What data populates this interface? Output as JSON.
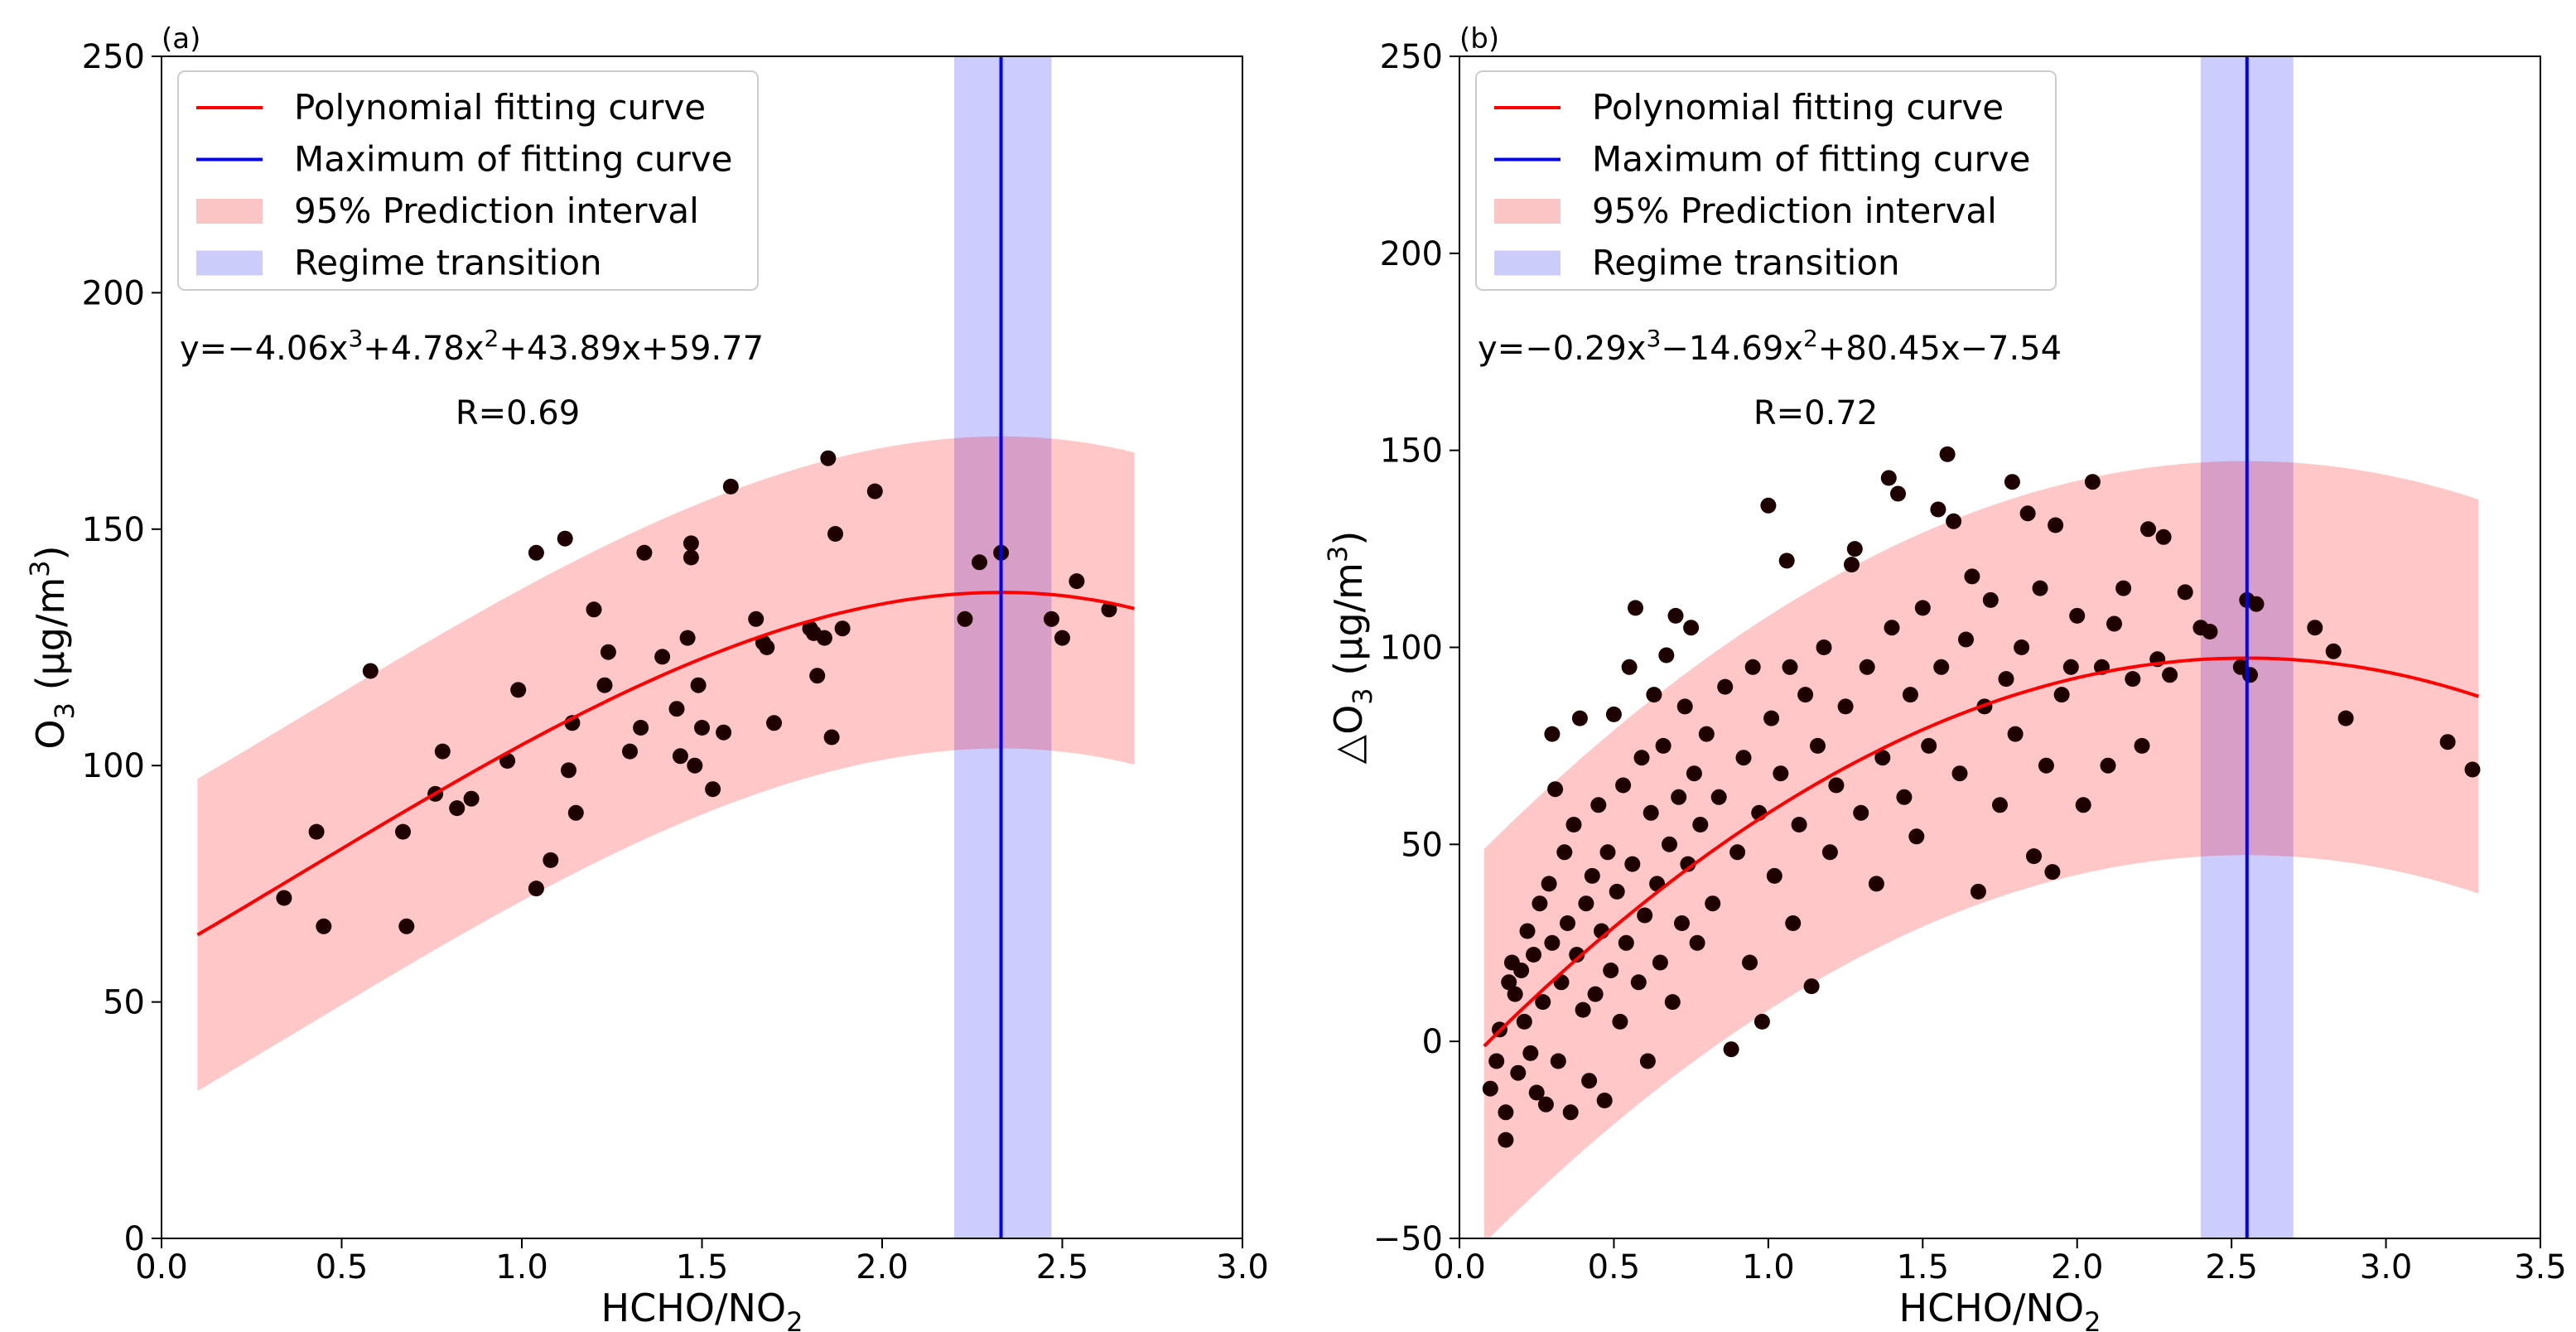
{
  "chart_data": [
    {
      "type": "scatter",
      "panel_label": "(a)",
      "xlabel": {
        "main": "HCHO/NO",
        "sub": "2"
      },
      "ylabel": {
        "main": "O",
        "sub": "3",
        "rest": " (μg/m",
        "sup": "3",
        "end": ")"
      },
      "xlim": [
        0,
        3.0
      ],
      "ylim": [
        0,
        250
      ],
      "xticks": [
        "0.0",
        "0.5",
        "1.0",
        "1.5",
        "2.0",
        "2.5",
        "3.0"
      ],
      "yticks": [
        "0",
        "50",
        "100",
        "150",
        "200",
        "250"
      ],
      "legend": {
        "position": "top-left",
        "entries": [
          {
            "label": "Polynomial fitting curve",
            "kind": "line",
            "color": "#ff0000"
          },
          {
            "label": "Maximum of fitting curve",
            "kind": "line",
            "color": "#0000ff"
          },
          {
            "label": "95% Prediction interval",
            "kind": "patch",
            "color": "#fcc5c5"
          },
          {
            "label": "Regime transition",
            "kind": "patch",
            "color": "#ccccfb"
          }
        ]
      },
      "equation": {
        "parts": [
          "y=−4.06x",
          "3",
          "+4.78x",
          "2",
          "+43.89x+59.77"
        ]
      },
      "r_text": "R=0.69",
      "fit": {
        "coeffs": [
          -4.06,
          4.78,
          43.89,
          59.77
        ],
        "x_range": [
          0.1,
          2.7
        ]
      },
      "interval": {
        "half_width": 33,
        "x_range": [
          0.1,
          2.7
        ]
      },
      "maximum_x": 2.33,
      "transition": [
        2.2,
        2.47
      ],
      "points": [
        [
          0.34,
          72
        ],
        [
          0.43,
          86
        ],
        [
          0.45,
          66
        ],
        [
          0.58,
          120
        ],
        [
          0.67,
          86
        ],
        [
          0.68,
          66
        ],
        [
          0.76,
          94
        ],
        [
          0.78,
          103
        ],
        [
          0.82,
          91
        ],
        [
          0.86,
          93
        ],
        [
          0.96,
          101
        ],
        [
          0.99,
          116
        ],
        [
          1.04,
          74
        ],
        [
          1.04,
          145
        ],
        [
          1.08,
          80
        ],
        [
          1.12,
          148
        ],
        [
          1.13,
          99
        ],
        [
          1.14,
          109
        ],
        [
          1.15,
          90
        ],
        [
          1.2,
          133
        ],
        [
          1.23,
          117
        ],
        [
          1.24,
          124
        ],
        [
          1.3,
          103
        ],
        [
          1.33,
          108
        ],
        [
          1.34,
          145
        ],
        [
          1.39,
          123
        ],
        [
          1.43,
          112
        ],
        [
          1.44,
          102
        ],
        [
          1.46,
          127
        ],
        [
          1.47,
          147
        ],
        [
          1.47,
          144
        ],
        [
          1.48,
          100
        ],
        [
          1.49,
          117
        ],
        [
          1.5,
          108
        ],
        [
          1.53,
          95
        ],
        [
          1.56,
          107
        ],
        [
          1.58,
          159
        ],
        [
          1.65,
          131
        ],
        [
          1.67,
          126
        ],
        [
          1.68,
          125
        ],
        [
          1.7,
          109
        ],
        [
          1.8,
          129
        ],
        [
          1.81,
          128
        ],
        [
          1.82,
          119
        ],
        [
          1.84,
          127
        ],
        [
          1.85,
          165
        ],
        [
          1.86,
          106
        ],
        [
          1.87,
          149
        ],
        [
          1.89,
          129
        ],
        [
          1.98,
          158
        ],
        [
          2.23,
          131
        ],
        [
          2.27,
          143
        ],
        [
          2.33,
          145
        ],
        [
          2.47,
          131
        ],
        [
          2.5,
          127
        ],
        [
          2.54,
          139
        ],
        [
          2.63,
          133
        ]
      ]
    },
    {
      "type": "scatter",
      "panel_label": "(b)",
      "xlabel": {
        "main": "HCHO/NO",
        "sub": "2"
      },
      "ylabel": {
        "main": "△O",
        "sub": "3",
        "rest": " (μg/m",
        "sup": "3",
        "end": ")"
      },
      "xlim": [
        0,
        3.5
      ],
      "ylim": [
        -50,
        250
      ],
      "xticks": [
        "0.0",
        "0.5",
        "1.0",
        "1.5",
        "2.0",
        "2.5",
        "3.0",
        "3.5"
      ],
      "yticks": [
        "−50",
        "0",
        "50",
        "100",
        "150",
        "200",
        "250"
      ],
      "legend": {
        "position": "top-left",
        "entries": [
          {
            "label": "Polynomial fitting curve",
            "kind": "line",
            "color": "#ff0000"
          },
          {
            "label": "Maximum of fitting curve",
            "kind": "line",
            "color": "#0000ff"
          },
          {
            "label": "95% Prediction interval",
            "kind": "patch",
            "color": "#fcc5c5"
          },
          {
            "label": "Regime transition",
            "kind": "patch",
            "color": "#ccccfb"
          }
        ]
      },
      "equation": {
        "parts": [
          "y=−0.29x",
          "3",
          "−14.69x",
          "2",
          "+80.45x−7.54"
        ]
      },
      "r_text": "R=0.72",
      "fit": {
        "coeffs": [
          -0.29,
          -14.69,
          80.45,
          -7.54
        ],
        "x_range": [
          0.08,
          3.3
        ]
      },
      "interval": {
        "half_width": 50,
        "x_range": [
          0.08,
          3.3
        ]
      },
      "maximum_x": 2.55,
      "transition": [
        2.4,
        2.7
      ],
      "points": [
        [
          0.1,
          -12
        ],
        [
          0.12,
          -5
        ],
        [
          0.13,
          3
        ],
        [
          0.15,
          -25
        ],
        [
          0.15,
          -18
        ],
        [
          0.16,
          15
        ],
        [
          0.17,
          20
        ],
        [
          0.18,
          12
        ],
        [
          0.19,
          -8
        ],
        [
          0.2,
          18
        ],
        [
          0.21,
          5
        ],
        [
          0.22,
          28
        ],
        [
          0.23,
          -3
        ],
        [
          0.24,
          22
        ],
        [
          0.25,
          -13
        ],
        [
          0.26,
          35
        ],
        [
          0.27,
          10
        ],
        [
          0.28,
          -16
        ],
        [
          0.29,
          40
        ],
        [
          0.3,
          25
        ],
        [
          0.3,
          78
        ],
        [
          0.31,
          64
        ],
        [
          0.32,
          -5
        ],
        [
          0.33,
          15
        ],
        [
          0.34,
          48
        ],
        [
          0.35,
          30
        ],
        [
          0.36,
          -18
        ],
        [
          0.37,
          55
        ],
        [
          0.38,
          22
        ],
        [
          0.39,
          82
        ],
        [
          0.4,
          8
        ],
        [
          0.41,
          35
        ],
        [
          0.42,
          -10
        ],
        [
          0.43,
          42
        ],
        [
          0.44,
          12
        ],
        [
          0.45,
          60
        ],
        [
          0.46,
          28
        ],
        [
          0.47,
          -15
        ],
        [
          0.48,
          48
        ],
        [
          0.49,
          18
        ],
        [
          0.5,
          83
        ],
        [
          0.51,
          38
        ],
        [
          0.52,
          5
        ],
        [
          0.53,
          65
        ],
        [
          0.54,
          25
        ],
        [
          0.55,
          95
        ],
        [
          0.56,
          45
        ],
        [
          0.57,
          110
        ],
        [
          0.58,
          15
        ],
        [
          0.59,
          72
        ],
        [
          0.6,
          32
        ],
        [
          0.61,
          -5
        ],
        [
          0.62,
          58
        ],
        [
          0.63,
          88
        ],
        [
          0.64,
          40
        ],
        [
          0.65,
          20
        ],
        [
          0.66,
          75
        ],
        [
          0.67,
          98
        ],
        [
          0.68,
          50
        ],
        [
          0.69,
          10
        ],
        [
          0.7,
          108
        ],
        [
          0.71,
          62
        ],
        [
          0.72,
          30
        ],
        [
          0.73,
          85
        ],
        [
          0.74,
          45
        ],
        [
          0.75,
          105
        ],
        [
          0.76,
          68
        ],
        [
          0.77,
          25
        ],
        [
          0.78,
          55
        ],
        [
          0.8,
          78
        ],
        [
          0.82,
          35
        ],
        [
          0.84,
          62
        ],
        [
          0.86,
          90
        ],
        [
          0.88,
          -2
        ],
        [
          0.9,
          48
        ],
        [
          0.92,
          72
        ],
        [
          0.94,
          20
        ],
        [
          0.95,
          95
        ],
        [
          0.97,
          58
        ],
        [
          0.98,
          5
        ],
        [
          1.0,
          136
        ],
        [
          1.01,
          82
        ],
        [
          1.02,
          42
        ],
        [
          1.04,
          68
        ],
        [
          1.06,
          122
        ],
        [
          1.07,
          95
        ],
        [
          1.08,
          30
        ],
        [
          1.1,
          55
        ],
        [
          1.12,
          88
        ],
        [
          1.14,
          14
        ],
        [
          1.16,
          75
        ],
        [
          1.18,
          100
        ],
        [
          1.2,
          48
        ],
        [
          1.22,
          65
        ],
        [
          1.25,
          85
        ],
        [
          1.27,
          121
        ],
        [
          1.28,
          125
        ],
        [
          1.3,
          58
        ],
        [
          1.32,
          95
        ],
        [
          1.35,
          40
        ],
        [
          1.37,
          72
        ],
        [
          1.39,
          143
        ],
        [
          1.4,
          105
        ],
        [
          1.42,
          139
        ],
        [
          1.44,
          62
        ],
        [
          1.46,
          88
        ],
        [
          1.48,
          52
        ],
        [
          1.5,
          110
        ],
        [
          1.52,
          75
        ],
        [
          1.55,
          135
        ],
        [
          1.56,
          95
        ],
        [
          1.58,
          149
        ],
        [
          1.6,
          132
        ],
        [
          1.62,
          68
        ],
        [
          1.64,
          102
        ],
        [
          1.66,
          118
        ],
        [
          1.68,
          38
        ],
        [
          1.7,
          85
        ],
        [
          1.72,
          112
        ],
        [
          1.75,
          60
        ],
        [
          1.77,
          92
        ],
        [
          1.79,
          142
        ],
        [
          1.8,
          78
        ],
        [
          1.82,
          100
        ],
        [
          1.84,
          134
        ],
        [
          1.86,
          47
        ],
        [
          1.88,
          115
        ],
        [
          1.9,
          70
        ],
        [
          1.92,
          43
        ],
        [
          1.93,
          131
        ],
        [
          1.95,
          88
        ],
        [
          1.98,
          95
        ],
        [
          2.0,
          108
        ],
        [
          2.02,
          60
        ],
        [
          2.05,
          142
        ],
        [
          2.08,
          95
        ],
        [
          2.1,
          70
        ],
        [
          2.12,
          106
        ],
        [
          2.15,
          115
        ],
        [
          2.18,
          92
        ],
        [
          2.21,
          75
        ],
        [
          2.23,
          130
        ],
        [
          2.26,
          97
        ],
        [
          2.28,
          128
        ],
        [
          2.3,
          93
        ],
        [
          2.35,
          114
        ],
        [
          2.4,
          105
        ],
        [
          2.43,
          104
        ],
        [
          2.53,
          95
        ],
        [
          2.55,
          112
        ],
        [
          2.56,
          93
        ],
        [
          2.58,
          111
        ],
        [
          2.77,
          105
        ],
        [
          2.83,
          99
        ],
        [
          2.87,
          82
        ],
        [
          3.2,
          76
        ],
        [
          3.28,
          69
        ]
      ]
    }
  ]
}
